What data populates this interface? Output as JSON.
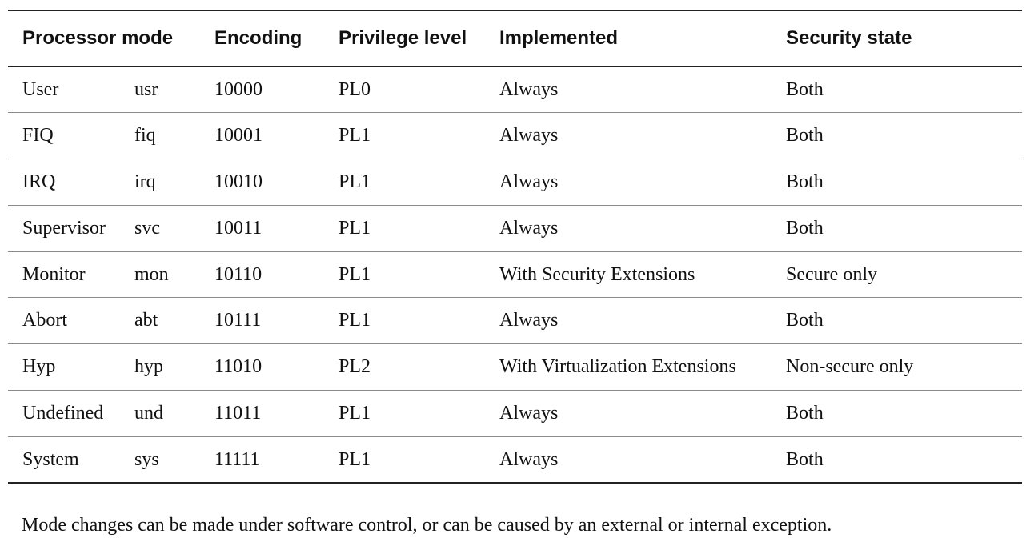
{
  "table": {
    "headers": {
      "processor_mode": "Processor mode",
      "encoding": "Encoding",
      "privilege_level": "Privilege level",
      "implemented": "Implemented",
      "security_state": "Security state"
    },
    "rows": [
      {
        "mode": "User",
        "abbr": "usr",
        "encoding": "10000",
        "privilege": "PL0",
        "implemented": "Always",
        "security": "Both"
      },
      {
        "mode": "FIQ",
        "abbr": "fiq",
        "encoding": "10001",
        "privilege": "PL1",
        "implemented": "Always",
        "security": "Both"
      },
      {
        "mode": "IRQ",
        "abbr": "irq",
        "encoding": "10010",
        "privilege": "PL1",
        "implemented": "Always",
        "security": "Both"
      },
      {
        "mode": "Supervisor",
        "abbr": "svc",
        "encoding": "10011",
        "privilege": "PL1",
        "implemented": "Always",
        "security": "Both"
      },
      {
        "mode": "Monitor",
        "abbr": "mon",
        "encoding": "10110",
        "privilege": "PL1",
        "implemented": "With Security Extensions",
        "security": "Secure only"
      },
      {
        "mode": "Abort",
        "abbr": "abt",
        "encoding": "10111",
        "privilege": "PL1",
        "implemented": "Always",
        "security": "Both"
      },
      {
        "mode": "Hyp",
        "abbr": "hyp",
        "encoding": "11010",
        "privilege": "PL2",
        "implemented": "With Virtualization Extensions",
        "security": "Non-secure only"
      },
      {
        "mode": "Undefined",
        "abbr": "und",
        "encoding": "11011",
        "privilege": "PL1",
        "implemented": "Always",
        "security": "Both"
      },
      {
        "mode": "System",
        "abbr": "sys",
        "encoding": "11111",
        "privilege": "PL1",
        "implemented": "Always",
        "security": "Both"
      }
    ]
  },
  "footnote": "Mode changes can be made under software control, or can be caused by an external or internal exception."
}
